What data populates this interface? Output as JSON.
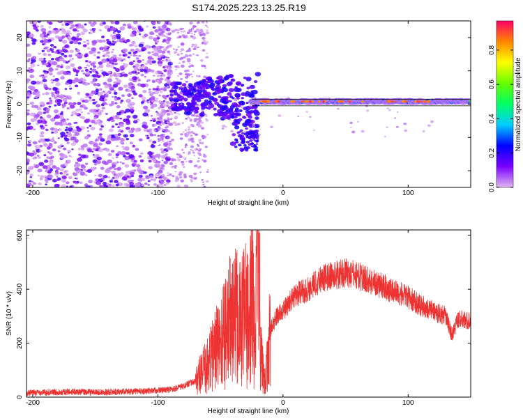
{
  "title": "S174.2025.223.13.25.R19",
  "chart_data": [
    {
      "type": "heatmap",
      "xlabel": "Height of straight line (km)",
      "ylabel": "Frequency (Hz)",
      "xlim": [
        -205,
        150
      ],
      "ylim": [
        -25,
        25
      ],
      "xticks": [
        -200,
        -100,
        0,
        100
      ],
      "yticks": [
        -20,
        -10,
        0,
        10,
        20
      ],
      "colorbar": {
        "label": "Normalized spectral amplitude",
        "range": [
          0.0,
          0.97
        ],
        "ticks": [
          0.0,
          0.2,
          0.4,
          0.6,
          0.8
        ],
        "colors": [
          "#e0b8f0",
          "#7b00ff",
          "#0000ff",
          "#00ccff",
          "#00ff66",
          "#66ff00",
          "#ffff00",
          "#ff8800",
          "#ff0066"
        ]
      },
      "line_segment": {
        "x": [
          -25,
          150
        ],
        "y": [
          0.5,
          1.5
        ]
      },
      "regions": [
        {
          "x_range": [
            -205,
            -90
          ],
          "freq_range": [
            -25,
            25
          ],
          "amplitude": "low (noise)"
        },
        {
          "x_range": [
            -90,
            -20
          ],
          "freq_range": [
            -15,
            7
          ],
          "amplitude": "medium"
        },
        {
          "x_range": [
            -20,
            150
          ],
          "freq_range": [
            0,
            2
          ],
          "amplitude": "high"
        }
      ]
    },
    {
      "type": "line",
      "xlabel": "Height of straight line (km)",
      "ylabel": "SNR (10 * v/v)",
      "xlim": [
        -205,
        150
      ],
      "ylim": [
        0,
        620
      ],
      "xticks": [
        -200,
        -100,
        0,
        100
      ],
      "yticks": [
        0,
        200,
        400,
        600
      ],
      "color": "#ee3333",
      "series": [
        {
          "name": "SNR",
          "x": [
            -205,
            -190,
            -170,
            -150,
            -130,
            -110,
            -90,
            -80,
            -70,
            -60,
            -55,
            -50,
            -45,
            -40,
            -35,
            -30,
            -27,
            -25,
            -22,
            -20,
            -19,
            -18,
            -16,
            -14,
            -12,
            -10,
            -5,
            0,
            5,
            10,
            20,
            30,
            40,
            50,
            60,
            70,
            80,
            90,
            100,
            110,
            120,
            130,
            135,
            140,
            150
          ],
          "y": [
            15,
            18,
            20,
            18,
            20,
            22,
            28,
            40,
            60,
            120,
            180,
            200,
            260,
            300,
            280,
            320,
            250,
            400,
            200,
            620,
            300,
            150,
            100,
            60,
            150,
            250,
            300,
            320,
            350,
            380,
            400,
            440,
            450,
            460,
            450,
            430,
            410,
            390,
            370,
            340,
            320,
            300,
            230,
            290,
            280
          ]
        }
      ]
    }
  ]
}
